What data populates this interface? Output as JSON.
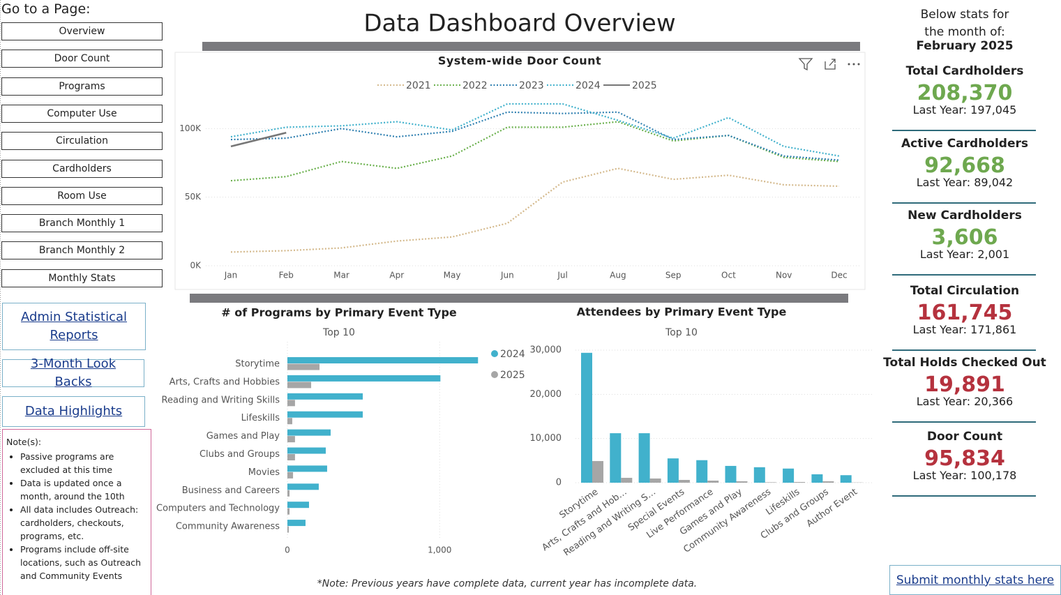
{
  "page_title": "Data Dashboard Overview",
  "nav": {
    "title": "Go to a Page:",
    "buttons": [
      "Overview",
      "Door Count",
      "Programs",
      "Computer Use",
      "Circulation",
      "Cardholders",
      "Room Use",
      "Branch Monthly 1",
      "Branch Monthly 2",
      "Monthly Stats"
    ]
  },
  "links": [
    "Admin Statistical Reports",
    "3-Month Look Backs",
    "Data Highlights"
  ],
  "notes": {
    "title": "Note(s):",
    "items": [
      "Passive programs are excluded at this time",
      "Data is updated once a month, around the 10th",
      "All data includes Outreach: cardholders, checkouts, programs, etc.",
      "Programs include off-site locations, such as Outreach and Community Events"
    ]
  },
  "footnote": "*Note: Previous years have complete data, current year has incomplete data.",
  "stats": {
    "intro": "Below stats for the month of:",
    "month": "February 2025",
    "cards": [
      {
        "label": "Total Cardholders",
        "value": "208,370",
        "last_year": "Last Year: 197,045",
        "color": "#6ea84f"
      },
      {
        "label": "Active Cardholders",
        "value": "92,668",
        "last_year": "Last Year: 89,042",
        "color": "#6ea84f"
      },
      {
        "label": "New Cardholders",
        "value": "3,606",
        "last_year": "Last Year: 2,001",
        "color": "#6ea84f"
      },
      {
        "label": "Total Circulation",
        "value": "161,745",
        "last_year": "Last Year: 171,861",
        "color": "#b5323e"
      },
      {
        "label": "Total Holds Checked Out",
        "value": "19,891",
        "last_year": "Last Year: 20,366",
        "color": "#b5323e"
      },
      {
        "label": "Door Count",
        "value": "95,834",
        "last_year": "Last Year: 100,178",
        "color": "#b5323e"
      }
    ]
  },
  "submit_link": "Submit monthly stats here",
  "chart_data": [
    {
      "type": "line",
      "title": "System-wide Door Count",
      "categories": [
        "Jan",
        "Feb",
        "Mar",
        "Apr",
        "May",
        "Jun",
        "Jul",
        "Aug",
        "Sep",
        "Oct",
        "Nov",
        "Dec"
      ],
      "series": [
        {
          "name": "2021",
          "color": "#d4b98c",
          "dotted": true,
          "values": [
            10000,
            11000,
            13000,
            18000,
            21000,
            31000,
            61000,
            71000,
            63000,
            66000,
            59000,
            58000
          ]
        },
        {
          "name": "2022",
          "color": "#6ab04c",
          "dotted": true,
          "values": [
            62000,
            65000,
            76000,
            71000,
            80000,
            101000,
            101000,
            105000,
            91000,
            95000,
            79000,
            76000
          ]
        },
        {
          "name": "2023",
          "color": "#2e7fb0",
          "dotted": true,
          "values": [
            92000,
            93000,
            100000,
            94000,
            98000,
            112000,
            111000,
            112000,
            92000,
            95000,
            80000,
            77000
          ]
        },
        {
          "name": "2024",
          "color": "#41b1cc",
          "dotted": true,
          "values": [
            94000,
            101000,
            102000,
            105000,
            99000,
            118000,
            118000,
            106000,
            93000,
            108000,
            87000,
            80000
          ]
        },
        {
          "name": "2025",
          "color": "#777777",
          "dotted": false,
          "values": [
            87000,
            97000,
            null,
            null,
            null,
            null,
            null,
            null,
            null,
            null,
            null,
            null
          ]
        }
      ],
      "ylim": [
        0,
        120000
      ],
      "yticks": [
        {
          "value": 0,
          "label": "0K"
        },
        {
          "value": 50000,
          "label": "50K"
        },
        {
          "value": 100000,
          "label": "100K"
        }
      ],
      "grid": true
    },
    {
      "type": "hbar",
      "title": "# of Programs by Primary Event Type",
      "subtitle": "Top 10",
      "categories": [
        "Storytime",
        "Arts, Crafts and Hobbies",
        "Reading and Writing Skills",
        "Lifeskills",
        "Games and Play",
        "Clubs and Groups",
        "Movies",
        "Business and Careers",
        "Computers and Technology",
        "Community Awareness"
      ],
      "series": [
        {
          "name": "2024",
          "color": "#41b1cc",
          "values": [
            1252,
            1005,
            495,
            495,
            284,
            252,
            261,
            206,
            142,
            119
          ]
        },
        {
          "name": "2025",
          "color": "#a6a6a6",
          "values": [
            211,
            156,
            50,
            32,
            50,
            50,
            37,
            14,
            14,
            9
          ]
        }
      ],
      "xlim": [
        0,
        1260
      ],
      "xticks": [
        0,
        {
          "value": 1000,
          "label": "1,000"
        }
      ],
      "grid": true
    },
    {
      "type": "bar",
      "title": "Attendees by Primary Event Type",
      "subtitle": "Top 10",
      "categories": [
        "Storytime",
        "Arts, Crafts and Hob…",
        "Reading and Writing S…",
        "Special Events",
        "Live Performance",
        "Games and Play",
        "Community Awareness",
        "Lifeskills",
        "Clubs and Groups",
        "Author Event"
      ],
      "series": [
        {
          "color": "#41b1cc",
          "values": [
            29400,
            11200,
            11200,
            5500,
            5100,
            3800,
            3500,
            3200,
            1900,
            1700
          ]
        },
        {
          "color": "#a6a6a6",
          "values": [
            4900,
            1100,
            950,
            630,
            470,
            320,
            100,
            160,
            320,
            50
          ]
        }
      ],
      "ylim": [
        0,
        30000
      ],
      "yticks": [
        0,
        {
          "value": 10000,
          "label": "10,000"
        },
        {
          "value": 20000,
          "label": "20,000"
        },
        {
          "value": 30000,
          "label": "30,000"
        }
      ],
      "grid": true
    }
  ]
}
